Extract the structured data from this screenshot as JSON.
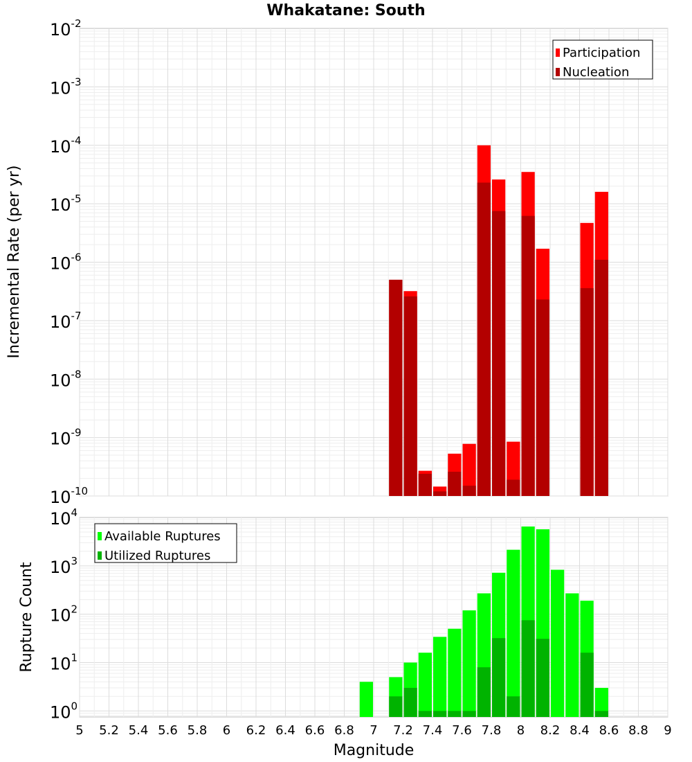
{
  "chart_data": {
    "title": "Whakatane: South",
    "type": "bar",
    "xlabel": "Magnitude",
    "xlim": [
      5,
      9
    ],
    "xticks": [
      "5",
      "5.2",
      "5.4",
      "5.6",
      "5.8",
      "6",
      "6.2",
      "6.4",
      "6.6",
      "6.8",
      "7",
      "7.2",
      "7.4",
      "7.6",
      "7.8",
      "8",
      "8.2",
      "8.4",
      "8.6",
      "8.8",
      "9"
    ],
    "bin_width": 0.1,
    "panels": [
      {
        "id": "rates",
        "ylabel": "Incremental Rate (per yr)",
        "yscale": "log",
        "ylim": [
          1e-10,
          0.01
        ],
        "grid": true,
        "legend_position": "top-right",
        "series": [
          {
            "name": "Participation",
            "color": "#ff0000",
            "x": [
              7.15,
              7.25,
              7.35,
              7.45,
              7.55,
              7.65,
              7.75,
              7.85,
              7.95,
              8.05,
              8.15,
              8.45,
              8.55
            ],
            "values": [
              5e-07,
              3.2e-07,
              2.7e-10,
              1.45e-10,
              5.3e-10,
              7.8e-10,
              0.0001,
              2.6e-05,
              8.5e-10,
              3.5e-05,
              1.7e-06,
              4.7e-06,
              1.6e-05
            ]
          },
          {
            "name": "Nucleation",
            "color": "#b30000",
            "x": [
              7.15,
              7.25,
              7.35,
              7.45,
              7.55,
              7.65,
              7.75,
              7.85,
              7.95,
              8.05,
              8.15,
              8.45,
              8.55
            ],
            "values": [
              5e-07,
              2.6e-07,
              2.4e-10,
              1.2e-10,
              2.6e-10,
              1.5e-10,
              2.3e-05,
              7.5e-06,
              1.9e-10,
              6.2e-06,
              2.3e-07,
              3.6e-07,
              1.1e-06
            ]
          }
        ]
      },
      {
        "id": "counts",
        "ylabel": "Rupture Count",
        "yscale": "log",
        "ylim": [
          0.75,
          10000
        ],
        "grid": true,
        "legend_position": "top-left",
        "series": [
          {
            "name": "Available Ruptures",
            "color": "#00ff00",
            "x": [
              6.95,
              7.15,
              7.25,
              7.35,
              7.45,
              7.55,
              7.65,
              7.75,
              7.85,
              7.95,
              8.05,
              8.15,
              8.25,
              8.35,
              8.45,
              8.55
            ],
            "values": [
              4,
              5,
              10,
              16,
              34,
              50,
              120,
              270,
              720,
              2150,
              6500,
              5700,
              830,
              270,
              190,
              3
            ]
          },
          {
            "name": "Utilized Ruptures",
            "color": "#00b300",
            "x": [
              7.15,
              7.25,
              7.35,
              7.45,
              7.55,
              7.65,
              7.75,
              7.85,
              7.95,
              8.05,
              8.15,
              8.45,
              8.55
            ],
            "values": [
              2,
              3,
              1,
              1,
              1,
              1,
              8,
              32,
              2,
              75,
              31,
              16,
              1
            ]
          }
        ]
      }
    ]
  }
}
